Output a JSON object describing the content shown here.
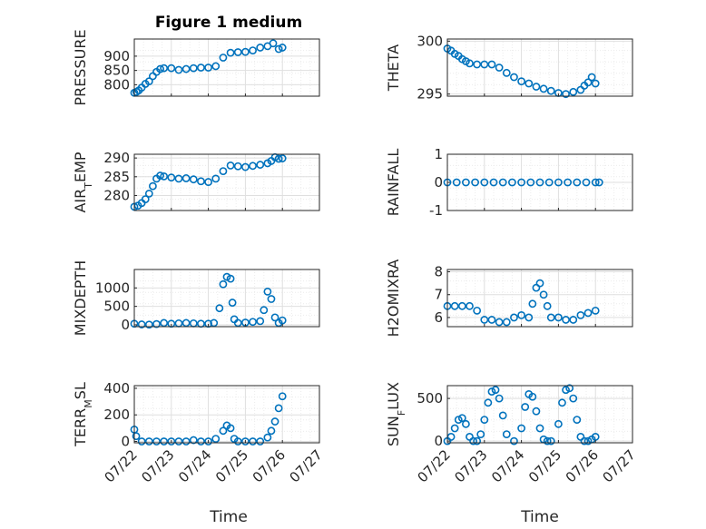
{
  "figure": {
    "title": "Figure 1 medium",
    "xlabel": "Time"
  },
  "colors": {
    "marker": "#0072bd",
    "axis": "#262626",
    "grid": "#dfdfdf",
    "minor_grid": "#ececec"
  },
  "chart_data": [
    {
      "type": "scatter",
      "ylabel": "PRESSURE",
      "ylim": [
        760,
        960
      ],
      "yticks": [
        800,
        850,
        900
      ],
      "x_dates": [
        "07/22",
        "07/23",
        "07/24",
        "07/25",
        "07/26",
        "07/27"
      ],
      "xlim_days": [
        0,
        5
      ],
      "x": [
        0.0,
        0.06,
        0.12,
        0.2,
        0.3,
        0.4,
        0.5,
        0.6,
        0.7,
        0.8,
        1.0,
        1.2,
        1.4,
        1.6,
        1.8,
        2.0,
        2.2,
        2.4,
        2.6,
        2.8,
        3.0,
        3.2,
        3.4,
        3.6,
        3.75,
        3.9,
        4.0
      ],
      "y": [
        772,
        775,
        780,
        790,
        803,
        812,
        830,
        845,
        855,
        858,
        858,
        852,
        855,
        858,
        860,
        860,
        865,
        895,
        912,
        914,
        915,
        920,
        930,
        935,
        945,
        925,
        930
      ]
    },
    {
      "type": "scatter",
      "ylabel": "THETA",
      "ylim": [
        294.8,
        300.2
      ],
      "yticks": [
        295,
        300
      ],
      "x_dates": [
        "07/22",
        "07/23",
        "07/24",
        "07/25",
        "07/26",
        "07/27"
      ],
      "xlim_days": [
        0,
        5
      ],
      "x": [
        0.0,
        0.1,
        0.2,
        0.3,
        0.4,
        0.5,
        0.6,
        0.8,
        1.0,
        1.2,
        1.4,
        1.6,
        1.8,
        2.0,
        2.2,
        2.4,
        2.6,
        2.8,
        3.0,
        3.2,
        3.4,
        3.6,
        3.7,
        3.8,
        3.9,
        4.0
      ],
      "y": [
        299.3,
        299.1,
        298.8,
        298.6,
        298.3,
        298.1,
        297.9,
        297.8,
        297.8,
        297.8,
        297.5,
        297.0,
        296.6,
        296.2,
        296.0,
        295.7,
        295.5,
        295.3,
        295.1,
        295.0,
        295.2,
        295.4,
        295.8,
        296.1,
        296.6,
        296.0
      ]
    },
    {
      "type": "scatter",
      "ylabel": "AIR_TEMP",
      "ylim": [
        276,
        291
      ],
      "yticks": [
        280,
        285,
        290
      ],
      "x_dates": [
        "07/22",
        "07/23",
        "07/24",
        "07/25",
        "07/26",
        "07/27"
      ],
      "xlim_days": [
        0,
        5
      ],
      "x": [
        0.0,
        0.1,
        0.2,
        0.3,
        0.4,
        0.5,
        0.6,
        0.7,
        0.8,
        1.0,
        1.2,
        1.4,
        1.6,
        1.8,
        2.0,
        2.2,
        2.4,
        2.6,
        2.8,
        3.0,
        3.2,
        3.4,
        3.6,
        3.7,
        3.8,
        3.9,
        4.0
      ],
      "y": [
        277.0,
        277.3,
        278.0,
        279.0,
        280.5,
        282.5,
        284.5,
        285.3,
        285.1,
        284.8,
        284.5,
        284.6,
        284.3,
        283.8,
        283.6,
        284.5,
        286.5,
        288.0,
        287.8,
        287.6,
        287.9,
        288.2,
        288.6,
        289.2,
        290.2,
        289.8,
        289.9
      ]
    },
    {
      "type": "scatter",
      "ylabel": "RAINFALL",
      "ylim": [
        -1,
        1
      ],
      "yticks": [
        -1,
        0,
        1
      ],
      "x_dates": [
        "07/22",
        "07/23",
        "07/24",
        "07/25",
        "07/26",
        "07/27"
      ],
      "xlim_days": [
        0,
        5
      ],
      "x": [
        0.0,
        0.25,
        0.5,
        0.75,
        1.0,
        1.25,
        1.5,
        1.75,
        2.0,
        2.25,
        2.5,
        2.75,
        3.0,
        3.25,
        3.5,
        3.75,
        4.0,
        4.1
      ],
      "y": [
        0,
        0,
        0,
        0,
        0,
        0,
        0,
        0,
        0,
        0,
        0,
        0,
        0,
        0,
        0,
        0,
        0,
        0
      ]
    },
    {
      "type": "scatter",
      "ylabel": "MIXDEPTH",
      "ylim": [
        -50,
        1500
      ],
      "yticks": [
        0,
        500,
        1000
      ],
      "x_dates": [
        "07/22",
        "07/23",
        "07/24",
        "07/25",
        "07/26",
        "07/27"
      ],
      "xlim_days": [
        0,
        5
      ],
      "x": [
        0.0,
        0.2,
        0.4,
        0.6,
        0.8,
        1.0,
        1.2,
        1.4,
        1.6,
        1.8,
        2.0,
        2.15,
        2.3,
        2.4,
        2.5,
        2.6,
        2.65,
        2.7,
        2.8,
        3.0,
        3.2,
        3.4,
        3.5,
        3.6,
        3.7,
        3.8,
        3.9,
        4.0
      ],
      "y": [
        30,
        10,
        5,
        20,
        50,
        30,
        40,
        50,
        40,
        30,
        30,
        50,
        450,
        1100,
        1300,
        1250,
        600,
        150,
        50,
        60,
        80,
        100,
        400,
        900,
        700,
        200,
        50,
        120
      ]
    },
    {
      "type": "scatter",
      "ylabel": "H2OMIXRA",
      "ylim": [
        5.6,
        8.1
      ],
      "yticks": [
        6,
        7,
        8
      ],
      "x_dates": [
        "07/22",
        "07/23",
        "07/24",
        "07/25",
        "07/26",
        "07/27"
      ],
      "xlim_days": [
        0,
        5
      ],
      "x": [
        0.0,
        0.2,
        0.4,
        0.6,
        0.8,
        1.0,
        1.2,
        1.4,
        1.6,
        1.8,
        2.0,
        2.2,
        2.3,
        2.4,
        2.5,
        2.6,
        2.7,
        2.8,
        3.0,
        3.2,
        3.4,
        3.6,
        3.8,
        4.0
      ],
      "y": [
        6.5,
        6.5,
        6.5,
        6.5,
        6.3,
        5.9,
        5.9,
        5.8,
        5.8,
        6.0,
        6.1,
        6.0,
        6.6,
        7.3,
        7.5,
        7.0,
        6.5,
        6.0,
        6.0,
        5.9,
        5.9,
        6.1,
        6.2,
        6.3
      ]
    },
    {
      "type": "scatter",
      "ylabel": "TERR_MSL",
      "ylim": [
        -10,
        420
      ],
      "yticks": [
        0,
        200,
        400
      ],
      "x_dates": [
        "07/22",
        "07/23",
        "07/24",
        "07/25",
        "07/26",
        "07/27"
      ],
      "xlim_days": [
        0,
        5
      ],
      "x": [
        0.0,
        0.05,
        0.2,
        0.4,
        0.6,
        0.8,
        1.0,
        1.2,
        1.4,
        1.6,
        1.8,
        2.0,
        2.2,
        2.4,
        2.5,
        2.6,
        2.7,
        2.8,
        3.0,
        3.2,
        3.4,
        3.6,
        3.7,
        3.8,
        3.9,
        4.0
      ],
      "y": [
        90,
        40,
        0,
        0,
        0,
        0,
        0,
        0,
        0,
        10,
        0,
        0,
        20,
        80,
        120,
        100,
        20,
        0,
        0,
        0,
        0,
        30,
        80,
        150,
        250,
        340
      ]
    },
    {
      "type": "scatter",
      "ylabel": "SUN_FLUX",
      "ylim": [
        -20,
        650
      ],
      "yticks": [
        0,
        500
      ],
      "x_dates": [
        "07/22",
        "07/23",
        "07/24",
        "07/25",
        "07/26",
        "07/27"
      ],
      "xlim_days": [
        0,
        5
      ],
      "x": [
        0.0,
        0.1,
        0.2,
        0.3,
        0.4,
        0.5,
        0.6,
        0.7,
        0.8,
        0.9,
        1.0,
        1.1,
        1.2,
        1.3,
        1.4,
        1.5,
        1.6,
        1.8,
        2.0,
        2.1,
        2.2,
        2.3,
        2.4,
        2.5,
        2.6,
        2.7,
        2.8,
        3.0,
        3.1,
        3.2,
        3.3,
        3.4,
        3.5,
        3.6,
        3.7,
        3.8,
        3.9,
        4.0
      ],
      "y": [
        0,
        50,
        150,
        250,
        270,
        200,
        50,
        0,
        0,
        80,
        250,
        450,
        580,
        600,
        500,
        300,
        80,
        0,
        150,
        400,
        550,
        520,
        350,
        150,
        20,
        0,
        0,
        200,
        450,
        600,
        620,
        500,
        250,
        50,
        0,
        0,
        20,
        50
      ]
    }
  ]
}
